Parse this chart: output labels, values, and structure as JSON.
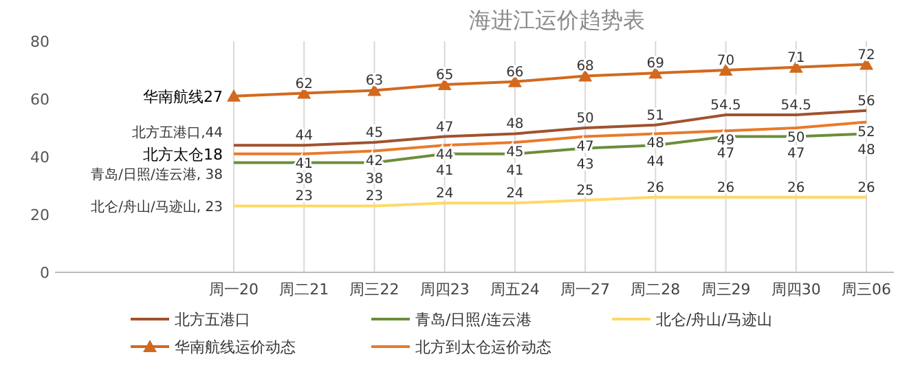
{
  "chart_data": {
    "type": "line",
    "title": "海进江运价趋势表",
    "categories": [
      "周一20",
      "周二21",
      "周三22",
      "周四23",
      "周五24",
      "周一27",
      "周二28",
      "周三29",
      "周四30",
      "周三06"
    ],
    "series": [
      {
        "name": "北方五港口",
        "color": "#a0522d",
        "values": [
          44,
          44,
          45,
          47,
          48,
          50,
          51,
          54.5,
          54.5,
          56
        ],
        "value_labels": [
          "北方五港口,44",
          "44",
          "45",
          "47",
          "48",
          "50",
          "51",
          "54.5",
          "54.5",
          "56"
        ]
      },
      {
        "name": "青岛/日照/连云港",
        "color": "#6b8e3a",
        "values": [
          38,
          38,
          38,
          41,
          41,
          43,
          44,
          47,
          47,
          48
        ],
        "value_labels": [
          "青岛/日照/连云港, 38",
          "38",
          "38",
          "41",
          "41",
          "43",
          "44",
          "47",
          "47",
          "48"
        ]
      },
      {
        "name": "北仑/舟山/马迹山",
        "color": "#ffd966",
        "values": [
          23,
          23,
          23,
          24,
          24,
          25,
          26,
          26,
          26,
          26
        ],
        "value_labels": [
          "北仑/舟山/马迹山, 23",
          "23",
          "23",
          "24",
          "24",
          "25",
          "26",
          "26",
          "26",
          "26"
        ]
      },
      {
        "name": "华南航线运价动态",
        "color": "#d2691e",
        "marker": "triangle",
        "values": [
          61,
          62,
          63,
          65,
          66,
          68,
          69,
          70,
          71,
          72
        ],
        "value_labels": [
          null,
          "62",
          "63",
          "65",
          "66",
          "68",
          "69",
          "70",
          "71",
          "72"
        ]
      },
      {
        "name": "北方到太仓运价动态",
        "color": "#e87a2a",
        "values": [
          41,
          41,
          42,
          44,
          45,
          47,
          48,
          49,
          50,
          52
        ],
        "value_labels": [
          null,
          "41",
          "42",
          "44",
          "45",
          "47",
          "48",
          "49",
          "50",
          "52"
        ]
      }
    ],
    "annotations": [
      {
        "text": "华南航线27",
        "x": "周一20",
        "y": 61
      },
      {
        "text": "北方太仓18",
        "x": "周一20",
        "y": 41
      }
    ],
    "ylim": [
      0,
      80
    ],
    "yticks": [
      0,
      20,
      40,
      60,
      80
    ],
    "grid": "x",
    "legend": "bottom",
    "marker": "none",
    "line_style": "solid"
  }
}
